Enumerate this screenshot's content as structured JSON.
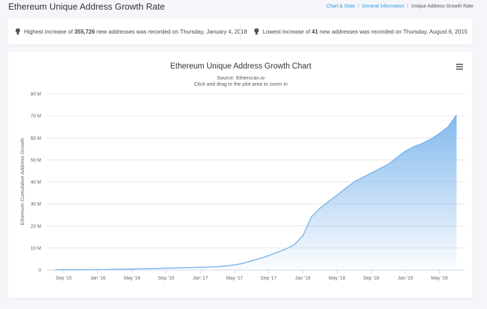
{
  "header": {
    "title": "Ethereum Unique Address Growth Rate",
    "breadcrumb": [
      "Chart & Stats",
      "General Information",
      "Unique Address Growth Rate"
    ]
  },
  "stats": [
    {
      "prefix": "Highest increase of",
      "value": "355,726",
      "suffix": "new addresses was recorded on Thursday, January 4, 2018"
    },
    {
      "prefix": "Lowest increase of",
      "value": "41",
      "suffix": "new addresses was recorded on Thursday, August 6, 2015"
    }
  ],
  "chart_data": {
    "type": "area",
    "title": "Ethereum Unique Address Growth Chart",
    "subtitle": [
      "Source: Etherscan.io",
      "Click and drag in the plot area to zoom in"
    ],
    "y_label": "Ethereum Cumulative Address Growth",
    "color": "#7cb5ec",
    "grid": true,
    "x": [
      "2015-08",
      "2015-09",
      "2015-10",
      "2015-11",
      "2015-12",
      "2016-01",
      "2016-02",
      "2016-03",
      "2016-04",
      "2016-05",
      "2016-06",
      "2016-07",
      "2016-08",
      "2016-09",
      "2016-10",
      "2016-11",
      "2016-12",
      "2017-01",
      "2017-02",
      "2017-03",
      "2017-04",
      "2017-05",
      "2017-06",
      "2017-07",
      "2017-08",
      "2017-09",
      "2017-10",
      "2017-11",
      "2017-12",
      "2018-01",
      "2018-02",
      "2018-03",
      "2018-04",
      "2018-05",
      "2018-06",
      "2018-07",
      "2018-08",
      "2018-09",
      "2018-10",
      "2018-11",
      "2018-12",
      "2019-01",
      "2019-02",
      "2019-03",
      "2019-04",
      "2019-05",
      "2019-06",
      "2019-07"
    ],
    "values": [
      0.02,
      0.05,
      0.07,
      0.1,
      0.12,
      0.15,
      0.2,
      0.3,
      0.35,
      0.4,
      0.5,
      0.6,
      0.7,
      0.8,
      0.9,
      1.0,
      1.1,
      1.2,
      1.3,
      1.5,
      1.8,
      2.3,
      3.0,
      4.2,
      5.2,
      6.5,
      8.0,
      9.5,
      11.5,
      15.5,
      24,
      28,
      31,
      34,
      37,
      40,
      42,
      44,
      46,
      48,
      51,
      54,
      56,
      57.5,
      59.5,
      62,
      65,
      70.5
    ],
    "xlim": [
      "2015-07",
      "2019-08"
    ],
    "xticks": [
      {
        "value": "2015-09",
        "label": "Sep '15"
      },
      {
        "value": "2016-01",
        "label": "Jan '16"
      },
      {
        "value": "2016-05",
        "label": "May '16"
      },
      {
        "value": "2016-09",
        "label": "Sep '16"
      },
      {
        "value": "2017-01",
        "label": "Jan '17"
      },
      {
        "value": "2017-05",
        "label": "May '17"
      },
      {
        "value": "2017-09",
        "label": "Sep '17"
      },
      {
        "value": "2018-01",
        "label": "Jan '18"
      },
      {
        "value": "2018-05",
        "label": "May '18"
      },
      {
        "value": "2018-09",
        "label": "Sep '18"
      },
      {
        "value": "2019-01",
        "label": "Jan '19"
      },
      {
        "value": "2019-05",
        "label": "May '19"
      }
    ],
    "ylim": [
      0,
      80
    ],
    "yticks": [
      0,
      {
        "value": 10,
        "label": "10 M"
      },
      {
        "value": 20,
        "label": "20 M"
      },
      {
        "value": 30,
        "label": "30 M"
      },
      {
        "value": 40,
        "label": "40 M"
      },
      {
        "value": 50,
        "label": "50 M"
      },
      {
        "value": 60,
        "label": "60 M"
      },
      {
        "value": 70,
        "label": "70 M"
      },
      {
        "value": 80,
        "label": "80 M"
      }
    ]
  }
}
